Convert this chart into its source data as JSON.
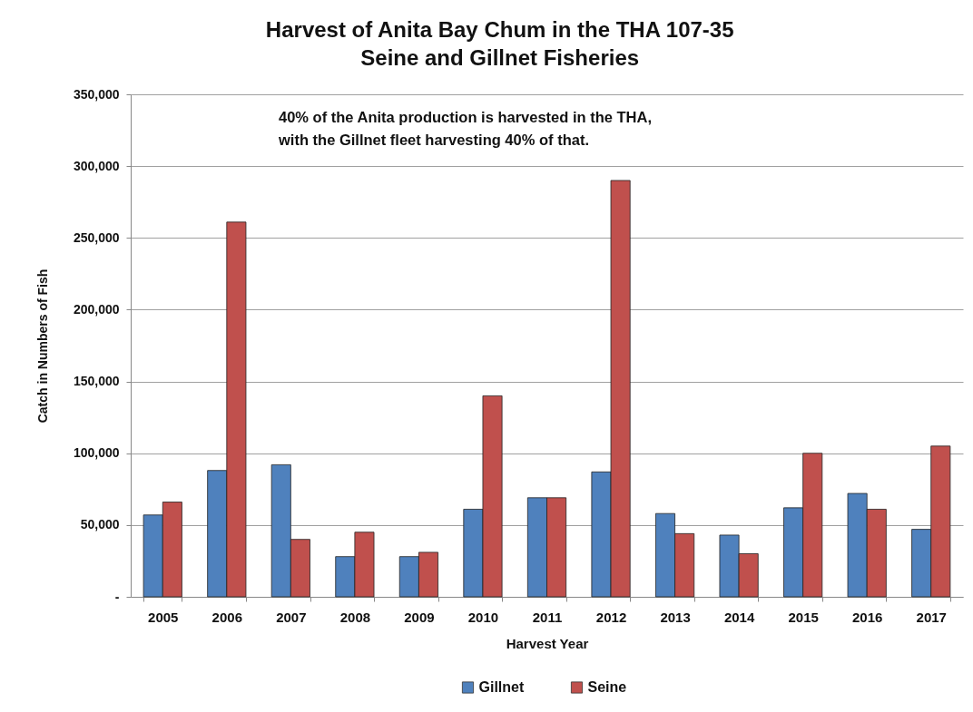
{
  "chart_data": {
    "type": "bar",
    "title": "Harvest of Anita Bay Chum in the THA 107-35\nSeine and Gillnet Fisheries",
    "xlabel": "Harvest Year",
    "ylabel": "Catch in Numbers of Fish",
    "annotations": [
      "40% of the Anita production is harvested in the THA,\nwith the Gillnet fleet harvesting 40% of that."
    ],
    "categories": [
      "2005",
      "2006",
      "2007",
      "2008",
      "2009",
      "2010",
      "2011",
      "2012",
      "2013",
      "2014",
      "2015",
      "2016",
      "2017"
    ],
    "series": [
      {
        "name": "Gillnet",
        "color": "#4f81bd",
        "values": [
          57000,
          88000,
          92000,
          28000,
          28000,
          61000,
          69000,
          87000,
          58000,
          43000,
          62000,
          72000,
          47000
        ]
      },
      {
        "name": "Seine",
        "color": "#c0504d",
        "values": [
          66000,
          261000,
          40000,
          45000,
          31000,
          140000,
          69000,
          290000,
          44000,
          30000,
          100000,
          61000,
          105000
        ]
      }
    ],
    "ylim": [
      0,
      350000
    ],
    "yticks": [
      {
        "value": 0,
        "label": "-"
      },
      {
        "value": 50000,
        "label": "50,000"
      },
      {
        "value": 100000,
        "label": "100,000"
      },
      {
        "value": 150000,
        "label": "150,000"
      },
      {
        "value": 200000,
        "label": "200,000"
      },
      {
        "value": 250000,
        "label": "250,000"
      },
      {
        "value": 300000,
        "label": "300,000"
      },
      {
        "value": 350000,
        "label": "350,000"
      }
    ],
    "grid": "y",
    "legend": "bottom"
  }
}
